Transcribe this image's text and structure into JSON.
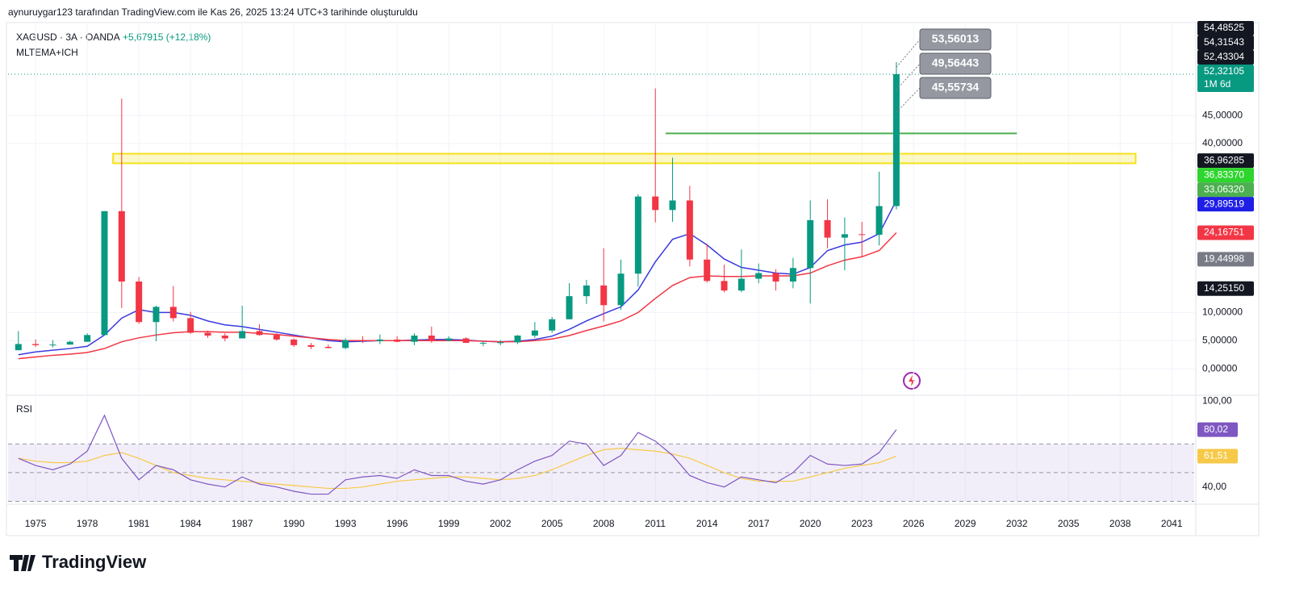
{
  "header": {
    "credit": "aynuruygar123 tarafından TradingView.com ile Kas 26, 2025 13:24 UTC+3 tarihinde oluşturuldu",
    "symbol": "XAGUSD · 3A · OANDA",
    "change": "+5,67915 (+12,18%)",
    "indicator": "MLTEMA+ICH",
    "logo": "TradingView"
  },
  "chart_data": {
    "type": "candlestick",
    "x": [
      1974,
      1975,
      1976,
      1977,
      1978,
      1979,
      1980,
      1981,
      1982,
      1983,
      1984,
      1985,
      1986,
      1987,
      1988,
      1989,
      1990,
      1991,
      1992,
      1993,
      1994,
      1995,
      1996,
      1997,
      1998,
      1999,
      2000,
      2001,
      2002,
      2003,
      2004,
      2005,
      2006,
      2007,
      2008,
      2009,
      2010,
      2011,
      2012,
      2013,
      2014,
      2015,
      2016,
      2017,
      2018,
      2019,
      2020,
      2021,
      2022,
      2023,
      2024,
      2025
    ],
    "open": [
      3.3,
      4.4,
      4.2,
      4.3,
      4.8,
      6.0,
      28,
      15.5,
      8.3,
      11,
      9.0,
      6.4,
      5.9,
      5.4,
      6.7,
      6.0,
      5.2,
      4.2,
      3.9,
      3.7,
      5.1,
      4.9,
      5.2,
      4.8,
      5.9,
      5.0,
      5.4,
      4.6,
      4.6,
      4.7,
      5.9,
      6.8,
      8.8,
      12.9,
      14.8,
      11.3,
      16.9,
      30.6,
      28.2,
      29.9,
      19.4,
      15.6,
      13.9,
      16.0,
      17.0,
      15.5,
      17.9,
      26.4,
      23.3,
      23.9,
      23.8,
      28.9
    ],
    "high": [
      6.7,
      5.2,
      5.1,
      5.0,
      6.3,
      28,
      48,
      16.3,
      11.2,
      14.7,
      10.1,
      6.8,
      6.3,
      11.2,
      7.9,
      6.3,
      5.4,
      4.6,
      4.3,
      5.4,
      5.8,
      6.1,
      5.8,
      6.3,
      7.5,
      5.8,
      5.6,
      4.8,
      5.1,
      6.0,
      8.3,
      9.2,
      15.2,
      15.8,
      21.4,
      19.4,
      31,
      49.8,
      37.5,
      32.5,
      22.2,
      18.5,
      21.2,
      18.7,
      17.7,
      19.7,
      29.9,
      30.1,
      26.9,
      26.1,
      35,
      54.48525
    ],
    "low": [
      3.3,
      3.9,
      3.8,
      4.3,
      4.8,
      5.9,
      10.8,
      8.0,
      4.9,
      8.4,
      6.2,
      5.5,
      4.9,
      5.4,
      5.9,
      5.0,
      3.9,
      3.5,
      3.6,
      3.5,
      4.6,
      4.4,
      4.7,
      4.2,
      4.6,
      4.9,
      4.6,
      4.0,
      4.2,
      4.4,
      5.5,
      6.4,
      8.8,
      11.5,
      8.4,
      10.5,
      14.6,
      26,
      26.1,
      18.2,
      15.3,
      13.6,
      13.6,
      15.2,
      13.9,
      14.3,
      11.6,
      21.4,
      17.5,
      19.9,
      21.9,
      28.3
    ],
    "close": [
      4.4,
      4.2,
      4.3,
      4.8,
      6.0,
      28,
      15.5,
      8.3,
      11,
      9.0,
      6.4,
      5.9,
      5.4,
      6.7,
      6.0,
      5.2,
      4.2,
      3.9,
      3.7,
      5.1,
      4.9,
      5.2,
      4.8,
      5.9,
      5.0,
      5.4,
      4.6,
      4.6,
      4.7,
      5.9,
      6.8,
      8.8,
      12.9,
      14.8,
      11.3,
      16.9,
      30.6,
      28.2,
      29.9,
      19.4,
      15.6,
      13.9,
      16.0,
      17.0,
      15.5,
      17.9,
      26.4,
      23.3,
      23.9,
      23.8,
      28.9,
      52.32105
    ],
    "up_color": "#089981",
    "down_color": "#f23645",
    "series": [
      {
        "color": "#3a3ae0",
        "values": [
          2.5,
          3,
          3.3,
          3.6,
          4,
          6,
          9,
          10.5,
          10,
          10,
          9.5,
          8.5,
          7.8,
          7.5,
          7,
          6.5,
          6,
          5.5,
          5,
          4.8,
          4.9,
          5,
          5,
          5.1,
          5.2,
          5.2,
          5.1,
          4.9,
          4.8,
          4.9,
          5.2,
          5.8,
          7,
          8.5,
          9.8,
          11,
          14,
          19,
          23,
          24,
          22,
          19.5,
          18,
          17.5,
          17,
          16.8,
          18,
          21,
          22,
          22.5,
          24,
          29.89519
        ]
      },
      {
        "color": "#f23645",
        "values": [
          1.8,
          2.1,
          2.4,
          2.6,
          2.9,
          3.6,
          4.8,
          5.5,
          6,
          6.4,
          6.6,
          6.6,
          6.5,
          6.5,
          6.3,
          6.1,
          5.8,
          5.5,
          5.2,
          5,
          5,
          5,
          5,
          5,
          5,
          5,
          5,
          4.9,
          4.8,
          4.8,
          5,
          5.3,
          5.9,
          6.8,
          7.6,
          8.5,
          10,
          12.5,
          14.8,
          16.2,
          16.5,
          16.4,
          16.4,
          16.5,
          16.5,
          16.5,
          17,
          18.3,
          19.3,
          19.9,
          21,
          24.16751
        ]
      }
    ],
    "zone": {
      "color": "#f5e11d",
      "range": [
        36.5,
        38.2
      ],
      "x": [
        1979.5,
        2038.9
      ]
    },
    "level": {
      "color": "#4caf50",
      "value": 41.8,
      "x": [
        2011.6,
        2032
      ]
    },
    "xlim": [
      1973.4,
      2042.3
    ],
    "ylim": [
      -4.7,
      61.2
    ],
    "xticks": [
      1975,
      1978,
      1981,
      1984,
      1987,
      1990,
      1993,
      1996,
      1999,
      2002,
      2005,
      2008,
      2011,
      2014,
      2017,
      2020,
      2023,
      2026,
      2029,
      2032,
      2035,
      2038,
      2041
    ],
    "yticks": [
      {
        "value": 0,
        "label": "0,00000"
      },
      {
        "value": 5,
        "label": "5,00000"
      },
      {
        "value": 10,
        "label": "10,00000"
      },
      {
        "value": 40,
        "label": "40,00000"
      },
      {
        "value": 45,
        "label": "45,00000"
      }
    ],
    "top_labels": [
      {
        "value": 54.48525,
        "label": "54,48525",
        "color": "#131722"
      },
      {
        "value": 54.31543,
        "label": "54,31543",
        "color": "#131722"
      },
      {
        "value": 52.43304,
        "label": "52,43304",
        "color": "#131722"
      },
      {
        "value": 52.32105,
        "label": "52,32105",
        "color": "#089981",
        "note": "1M 6d"
      }
    ],
    "price_labels": [
      {
        "value": 36.96285,
        "label": "36,96285",
        "color": "#131722"
      },
      {
        "value": 36.8337,
        "label": "36,83370",
        "color": "#2ed52e"
      },
      {
        "value": 33.0632,
        "label": "33,06320",
        "color": "#4caf50"
      },
      {
        "value": 29.89519,
        "label": "29,89519",
        "color": "#1e1ee6"
      },
      {
        "value": 24.16751,
        "label": "24,16751",
        "color": "#f23645"
      },
      {
        "value": 19.44998,
        "label": "19,44998",
        "color": "#787b86"
      },
      {
        "value": 14.2515,
        "label": "14,25150",
        "color": "#131722"
      }
    ],
    "annotations": [
      {
        "value": 53.56013,
        "label": "53,56013"
      },
      {
        "value": 49.56443,
        "label": "49,56443"
      },
      {
        "value": 45.55734,
        "label": "45,55734"
      }
    ],
    "rsi": {
      "title": "RSI",
      "color": "#7e57c2",
      "ma_color": "#f7c948",
      "values": [
        60,
        55,
        52,
        56,
        65,
        90,
        60,
        45,
        55,
        52,
        45,
        42,
        40,
        47,
        42,
        40,
        37,
        35,
        35,
        45,
        47,
        48,
        46,
        52,
        48,
        48,
        44,
        42,
        45,
        52,
        58,
        62,
        72,
        70,
        55,
        62,
        78,
        72,
        62,
        48,
        43,
        40,
        47,
        45,
        43,
        50,
        62,
        56,
        55,
        56,
        64,
        80.02
      ],
      "ma": [
        60,
        58,
        57,
        57,
        58,
        62,
        64,
        60,
        55,
        50,
        48,
        46,
        45,
        44,
        43,
        42,
        41,
        40,
        39,
        39,
        40,
        42,
        44,
        45,
        46,
        47,
        47,
        46,
        45,
        46,
        48,
        52,
        57,
        62,
        66,
        67,
        66,
        65,
        63,
        60,
        55,
        50,
        46,
        44,
        44,
        44,
        47,
        50,
        53,
        55,
        57,
        61.51
      ],
      "ylim": [
        28,
        104
      ],
      "band": [
        30,
        70
      ],
      "mid": 50,
      "yticks": [
        {
          "value": 100,
          "label": "100,00"
        },
        {
          "value": 40,
          "label": "40,00"
        }
      ],
      "last_labels": [
        {
          "value": 80.02,
          "label": "80,02",
          "color": "#7e57c2"
        },
        {
          "value": 61.51,
          "label": "61,51",
          "color": "#f7c948"
        }
      ]
    }
  }
}
